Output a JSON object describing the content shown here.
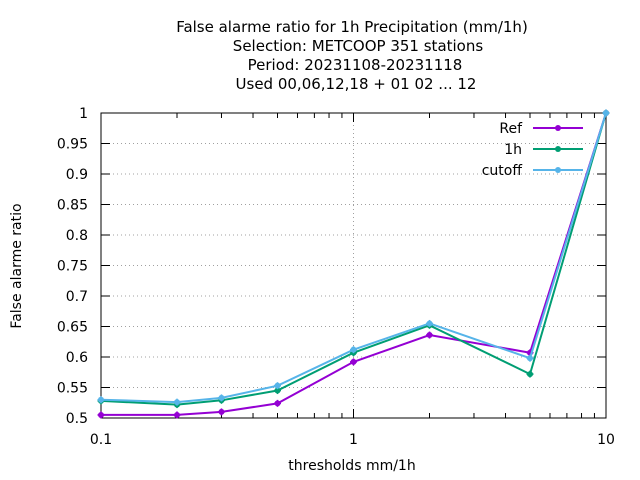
{
  "chart_data": {
    "type": "line",
    "title_lines": [
      "False alarme ratio  for 1h Precipitation (mm/1h)",
      "Selection: METCOOP    351 stations",
      "Period: 20231108-20231118",
      "Used  00,06,12,18 + 01 02 ... 12"
    ],
    "xlabel": "thresholds mm/1h",
    "ylabel": "False alarme ratio",
    "x_scale": "log",
    "xlim": [
      0.1,
      10
    ],
    "ylim": [
      0.5,
      1
    ],
    "x_ticks": [
      {
        "value": 0.1,
        "label": "0.1"
      },
      {
        "value": 1,
        "label": "1"
      },
      {
        "value": 10,
        "label": "10"
      }
    ],
    "y_ticks": [
      {
        "value": 0.5,
        "label": "0.5"
      },
      {
        "value": 0.55,
        "label": "0.55"
      },
      {
        "value": 0.6,
        "label": "0.6"
      },
      {
        "value": 0.65,
        "label": "0.65"
      },
      {
        "value": 0.7,
        "label": "0.7"
      },
      {
        "value": 0.75,
        "label": "0.75"
      },
      {
        "value": 0.8,
        "label": "0.8"
      },
      {
        "value": 0.85,
        "label": "0.85"
      },
      {
        "value": 0.9,
        "label": "0.9"
      },
      {
        "value": 0.95,
        "label": "0.95"
      },
      {
        "value": 1,
        "label": "1"
      }
    ],
    "grid": true,
    "legend_position": "top-right",
    "x": [
      0.1,
      0.2,
      0.3,
      0.5,
      1,
      2,
      5,
      10
    ],
    "series": [
      {
        "name": "Ref",
        "color": "#9400d3",
        "values": [
          0.505,
          0.505,
          0.51,
          0.524,
          0.592,
          0.636,
          0.607,
          1.0
        ]
      },
      {
        "name": "1h",
        "color": "#009e73",
        "values": [
          0.528,
          0.522,
          0.529,
          0.545,
          0.607,
          0.652,
          0.572,
          1.0
        ]
      },
      {
        "name": "cutoff",
        "color": "#56b4e9",
        "values": [
          0.53,
          0.526,
          0.533,
          0.553,
          0.612,
          0.655,
          0.598,
          1.0
        ]
      }
    ]
  }
}
